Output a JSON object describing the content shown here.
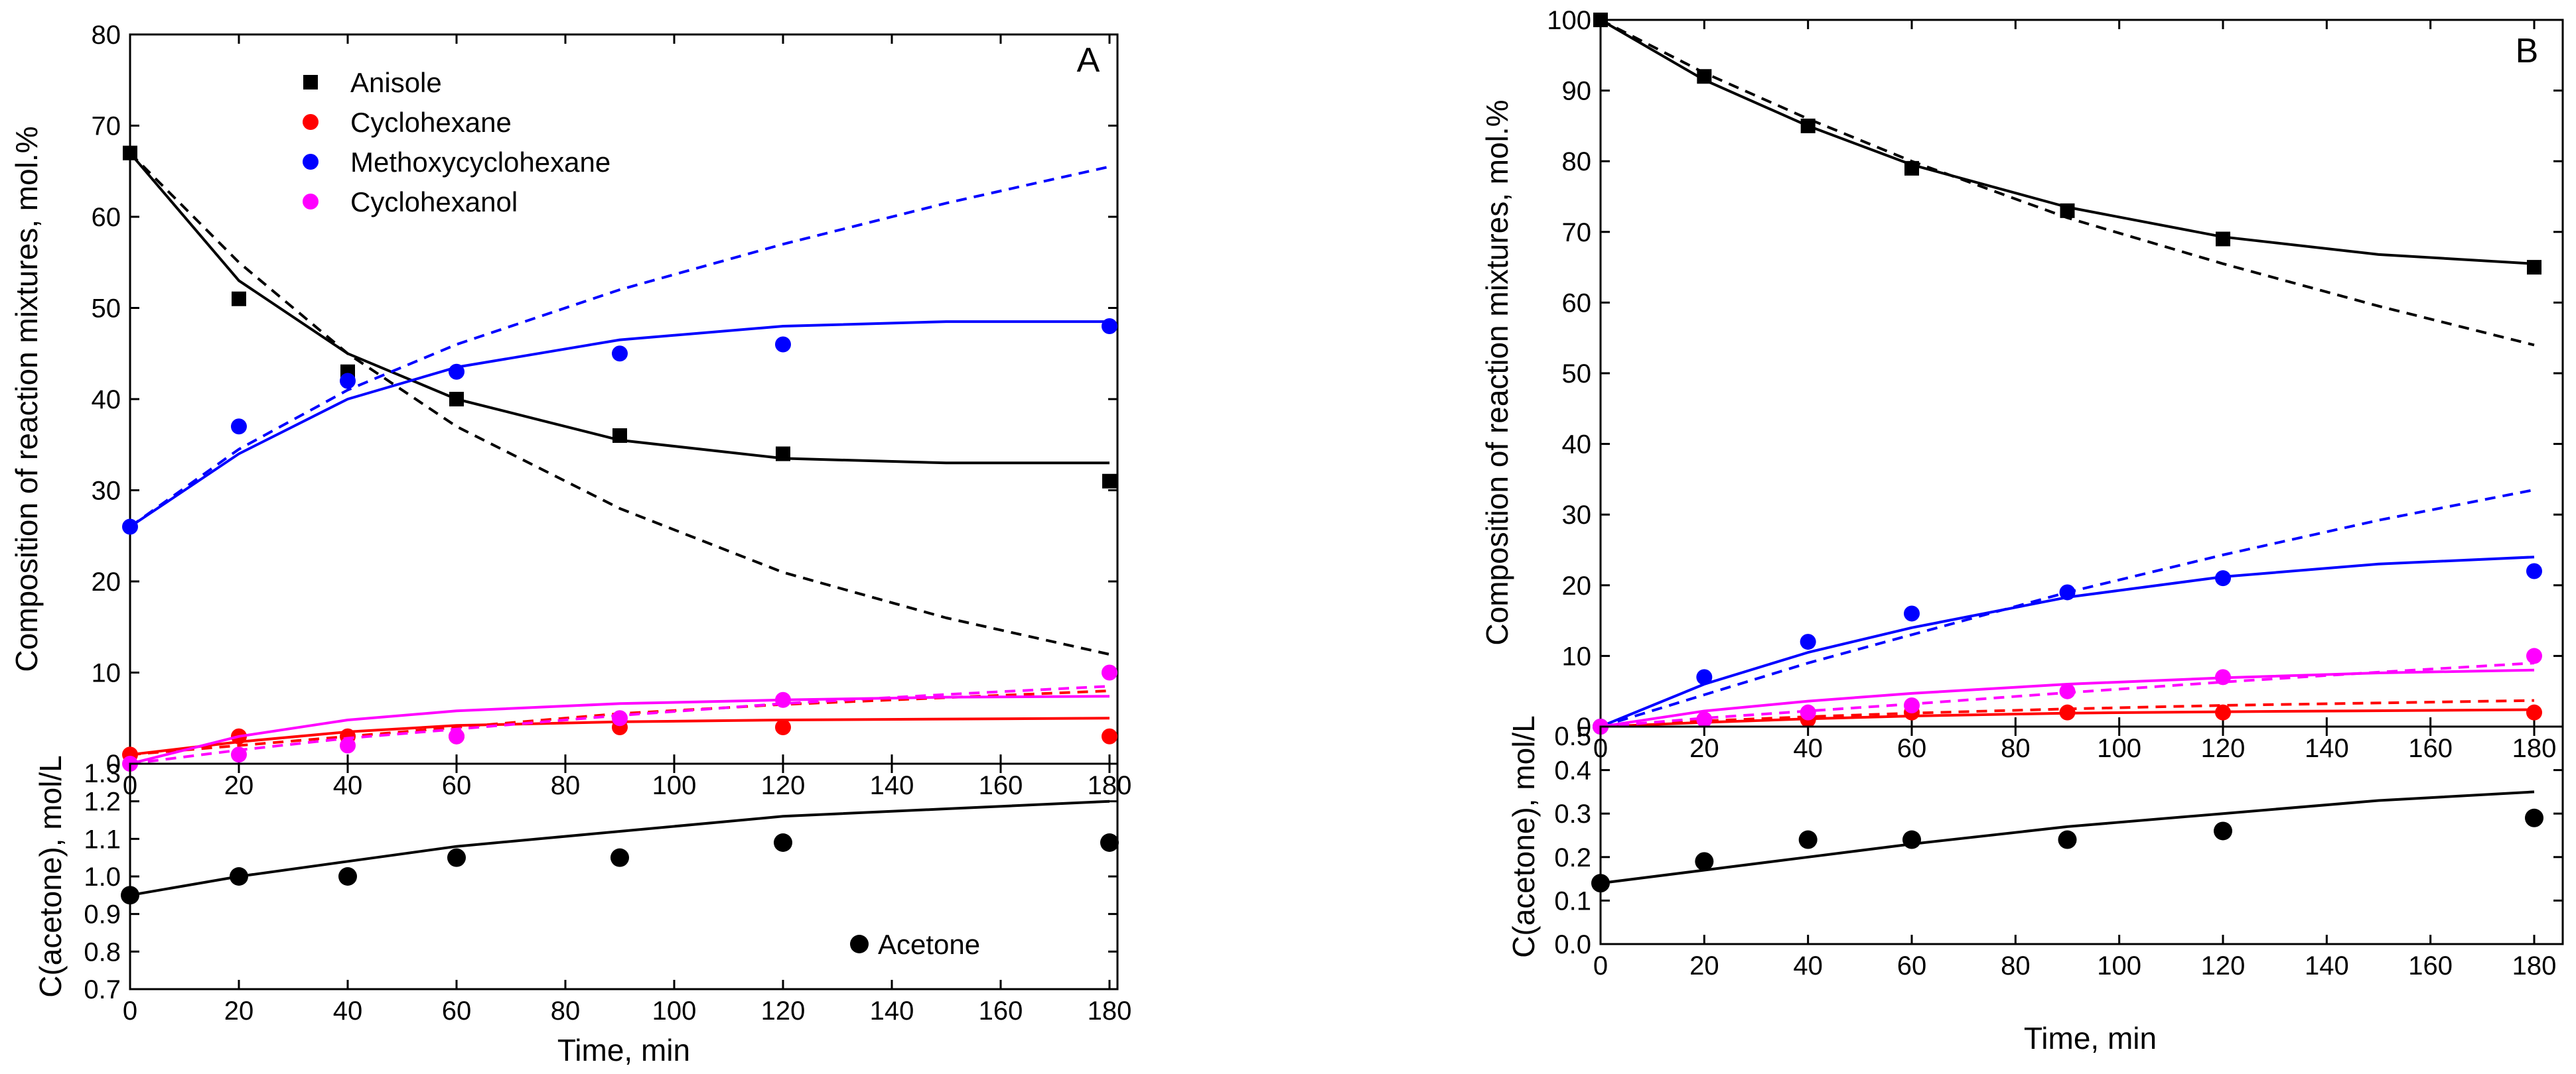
{
  "chart_data": [
    {
      "panel": "A",
      "type": "line",
      "x": [
        0,
        20,
        40,
        60,
        90,
        120,
        180
      ],
      "xlabel": "Time, min",
      "xlim": [
        0,
        180
      ],
      "xticks": [
        0,
        20,
        40,
        60,
        80,
        100,
        120,
        140,
        160,
        180
      ],
      "top": {
        "ylabel": "Composition of reaction mixtures, mol.%",
        "ylim": [
          0,
          80
        ],
        "yticks": [
          0,
          10,
          20,
          30,
          40,
          50,
          60,
          70,
          80
        ],
        "legend_position": "top-left",
        "series": [
          {
            "name": "Anisole",
            "color": "#000000",
            "marker": "square",
            "values": [
              67,
              51,
              43,
              40,
              36,
              34,
              31
            ],
            "fit_solid": [
              [
                0,
                67
              ],
              [
                20,
                53
              ],
              [
                40,
                45
              ],
              [
                60,
                40
              ],
              [
                90,
                35.5
              ],
              [
                120,
                33.5
              ],
              [
                150,
                33
              ],
              [
                180,
                33
              ]
            ],
            "fit_dashed": [
              [
                0,
                67
              ],
              [
                20,
                55
              ],
              [
                40,
                45
              ],
              [
                60,
                37
              ],
              [
                90,
                28
              ],
              [
                120,
                21
              ],
              [
                150,
                16
              ],
              [
                180,
                12
              ]
            ]
          },
          {
            "name": "Cyclohexane",
            "color": "#ff0000",
            "marker": "circle",
            "values": [
              1,
              3,
              3,
              3,
              4,
              4,
              3
            ],
            "fit_solid": [
              [
                0,
                1
              ],
              [
                20,
                2.4
              ],
              [
                40,
                3.5
              ],
              [
                60,
                4.2
              ],
              [
                90,
                4.6
              ],
              [
                120,
                4.8
              ],
              [
                180,
                5
              ]
            ],
            "fit_dashed": [
              [
                0,
                1
              ],
              [
                20,
                2
              ],
              [
                40,
                3
              ],
              [
                60,
                4
              ],
              [
                90,
                5.5
              ],
              [
                120,
                6.5
              ],
              [
                180,
                8
              ]
            ]
          },
          {
            "name": "Methoxycyclohexane",
            "color": "#0000ff",
            "marker": "circle",
            "values": [
              26,
              37,
              42,
              43,
              45,
              46,
              48
            ],
            "fit_solid": [
              [
                0,
                26
              ],
              [
                20,
                34
              ],
              [
                40,
                40
              ],
              [
                60,
                43.5
              ],
              [
                90,
                46.5
              ],
              [
                120,
                48
              ],
              [
                150,
                48.5
              ],
              [
                180,
                48.5
              ]
            ],
            "fit_dashed": [
              [
                0,
                26
              ],
              [
                20,
                34.5
              ],
              [
                40,
                41
              ],
              [
                60,
                46
              ],
              [
                90,
                52
              ],
              [
                120,
                57
              ],
              [
                150,
                61.5
              ],
              [
                180,
                65.5
              ]
            ]
          },
          {
            "name": "Cyclohexanol",
            "color": "#ff00ff",
            "marker": "circle",
            "values": [
              0,
              1,
              2,
              3,
              5,
              7,
              10
            ],
            "fit_solid": [
              [
                0,
                0
              ],
              [
                20,
                3
              ],
              [
                40,
                4.8
              ],
              [
                60,
                5.8
              ],
              [
                90,
                6.6
              ],
              [
                120,
                7
              ],
              [
                150,
                7.3
              ],
              [
                180,
                7.4
              ]
            ],
            "fit_dashed": [
              [
                0,
                0
              ],
              [
                20,
                1.5
              ],
              [
                40,
                2.8
              ],
              [
                60,
                3.8
              ],
              [
                90,
                5.3
              ],
              [
                120,
                6.6
              ],
              [
                150,
                7.6
              ],
              [
                180,
                8.5
              ]
            ]
          }
        ]
      },
      "bottom": {
        "ylabel": "C(acetone), mol/L",
        "ylim": [
          0.7,
          1.3
        ],
        "yticks": [
          0.7,
          0.8,
          0.9,
          1.0,
          1.1,
          1.2,
          1.3
        ],
        "legend_position": "bottom-right",
        "series": [
          {
            "name": "Acetone",
            "color": "#000000",
            "marker": "circle",
            "values": [
              0.95,
              1.0,
              1.0,
              1.05,
              1.05,
              1.09,
              1.09
            ],
            "fit_solid": [
              [
                0,
                0.95
              ],
              [
                20,
                1.0
              ],
              [
                40,
                1.04
              ],
              [
                60,
                1.08
              ],
              [
                90,
                1.12
              ],
              [
                120,
                1.16
              ],
              [
                150,
                1.18
              ],
              [
                180,
                1.2
              ]
            ]
          }
        ]
      }
    },
    {
      "panel": "B",
      "type": "line",
      "x": [
        0,
        20,
        40,
        60,
        90,
        120,
        180
      ],
      "xlabel": "Time, min",
      "xlim": [
        0,
        180
      ],
      "xticks": [
        0,
        20,
        40,
        60,
        80,
        100,
        120,
        140,
        160,
        180
      ],
      "top": {
        "ylabel": "Composition of reaction mixtures, mol.%",
        "ylim": [
          0,
          100
        ],
        "yticks": [
          0,
          10,
          20,
          30,
          40,
          50,
          60,
          70,
          80,
          90,
          100
        ],
        "series": [
          {
            "name": "Anisole",
            "color": "#000000",
            "marker": "square",
            "values": [
              100,
              92,
              85,
              79,
              73,
              69,
              65
            ],
            "fit_solid": [
              [
                0,
                100
              ],
              [
                20,
                91.5
              ],
              [
                40,
                85
              ],
              [
                60,
                79.5
              ],
              [
                90,
                73.5
              ],
              [
                120,
                69.3
              ],
              [
                150,
                66.8
              ],
              [
                180,
                65.5
              ]
            ],
            "fit_dashed": [
              [
                0,
                100
              ],
              [
                20,
                92.5
              ],
              [
                40,
                86
              ],
              [
                60,
                80
              ],
              [
                90,
                72
              ],
              [
                120,
                65.5
              ],
              [
                150,
                59.5
              ],
              [
                180,
                54
              ]
            ]
          },
          {
            "name": "Cyclohexane",
            "color": "#ff0000",
            "marker": "circle",
            "values": [
              0,
              1,
              1,
              2,
              2,
              2,
              2
            ],
            "fit_solid": [
              [
                0,
                0
              ],
              [
                20,
                0.6
              ],
              [
                40,
                1.1
              ],
              [
                60,
                1.5
              ],
              [
                90,
                1.9
              ],
              [
                120,
                2.1
              ],
              [
                180,
                2.4
              ]
            ],
            "fit_dashed": [
              [
                0,
                0
              ],
              [
                20,
                0.8
              ],
              [
                40,
                1.4
              ],
              [
                60,
                1.9
              ],
              [
                90,
                2.5
              ],
              [
                120,
                3
              ],
              [
                180,
                3.7
              ]
            ]
          },
          {
            "name": "Methoxycyclohexane",
            "color": "#0000ff",
            "marker": "circle",
            "values": [
              0,
              7,
              12,
              16,
              19,
              21,
              22
            ],
            "fit_solid": [
              [
                0,
                0
              ],
              [
                20,
                6
              ],
              [
                40,
                10.5
              ],
              [
                60,
                14
              ],
              [
                90,
                18.3
              ],
              [
                120,
                21.2
              ],
              [
                150,
                23
              ],
              [
                180,
                24
              ]
            ],
            "fit_dashed": [
              [
                0,
                0
              ],
              [
                20,
                4.5
              ],
              [
                40,
                9
              ],
              [
                60,
                13
              ],
              [
                90,
                19
              ],
              [
                120,
                24.3
              ],
              [
                150,
                29.2
              ],
              [
                180,
                33.5
              ]
            ]
          },
          {
            "name": "Cyclohexanol",
            "color": "#ff00ff",
            "marker": "circle",
            "values": [
              0,
              1,
              2,
              3,
              5,
              7,
              10
            ],
            "fit_solid": [
              [
                0,
                0
              ],
              [
                20,
                2.2
              ],
              [
                40,
                3.6
              ],
              [
                60,
                4.7
              ],
              [
                90,
                6
              ],
              [
                120,
                6.9
              ],
              [
                150,
                7.6
              ],
              [
                180,
                8
              ]
            ],
            "fit_dashed": [
              [
                0,
                0
              ],
              [
                20,
                1.2
              ],
              [
                40,
                2.2
              ],
              [
                60,
                3.2
              ],
              [
                90,
                4.8
              ],
              [
                120,
                6.3
              ],
              [
                150,
                7.7
              ],
              [
                180,
                9
              ]
            ]
          }
        ]
      },
      "bottom": {
        "ylabel": "C(acetone), mol/L",
        "ylim": [
          0.0,
          0.5
        ],
        "yticks": [
          0.0,
          0.1,
          0.2,
          0.3,
          0.4,
          0.5
        ],
        "series": [
          {
            "name": "Acetone",
            "color": "#000000",
            "marker": "circle",
            "values": [
              0.14,
              0.19,
              0.24,
              0.24,
              0.24,
              0.26,
              0.29
            ],
            "fit_solid": [
              [
                0,
                0.14
              ],
              [
                20,
                0.17
              ],
              [
                40,
                0.2
              ],
              [
                60,
                0.23
              ],
              [
                90,
                0.27
              ],
              [
                120,
                0.3
              ],
              [
                150,
                0.33
              ],
              [
                180,
                0.35
              ]
            ]
          }
        ]
      }
    }
  ]
}
